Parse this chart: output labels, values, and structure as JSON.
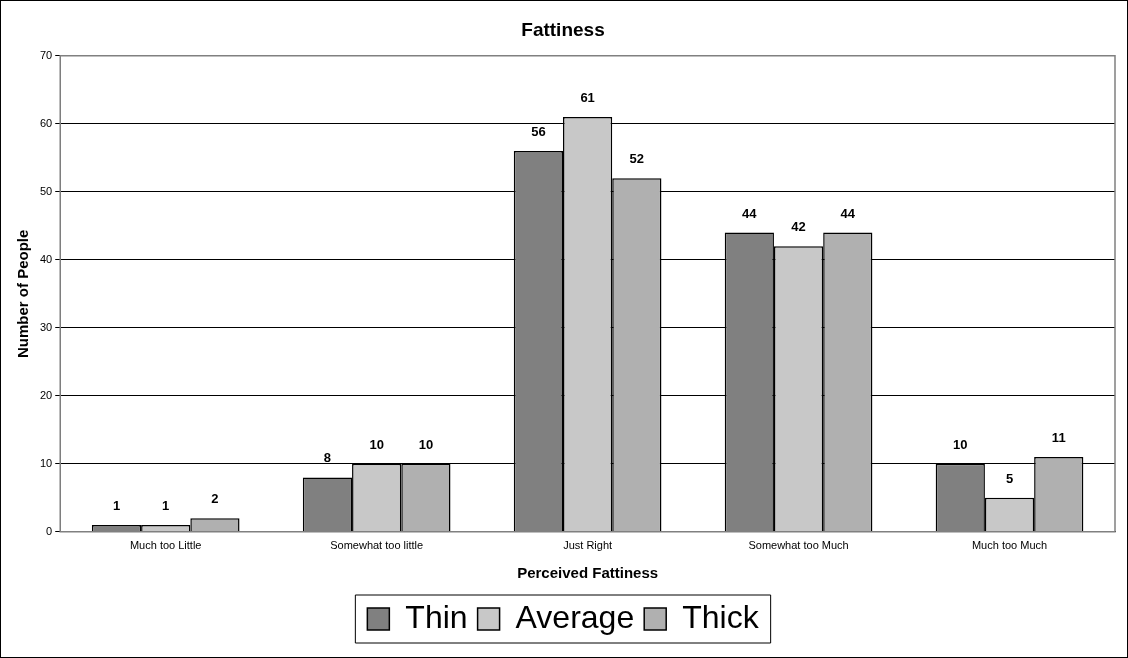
{
  "chart_data": {
    "type": "bar",
    "title": "Fattiness",
    "xlabel": "Perceived Fattiness",
    "ylabel": "Number of People",
    "categories": [
      "Much too Little",
      "Somewhat too little",
      "Just Right",
      "Somewhat too Much",
      "Much too Much"
    ],
    "series": [
      {
        "name": "Thin",
        "color": "#808080",
        "values": [
          1,
          8,
          56,
          44,
          10
        ]
      },
      {
        "name": "Average",
        "color": "#c8c8c8",
        "values": [
          1,
          10,
          61,
          42,
          5
        ]
      },
      {
        "name": "Thick",
        "color": "#b0b0b0",
        "values": [
          2,
          10,
          52,
          44,
          11
        ]
      }
    ],
    "ylim": [
      0,
      70
    ],
    "yticks": [
      0,
      10,
      20,
      30,
      40,
      50,
      60,
      70
    ],
    "grid": "y",
    "legend": "bottom",
    "data_labels": true
  }
}
